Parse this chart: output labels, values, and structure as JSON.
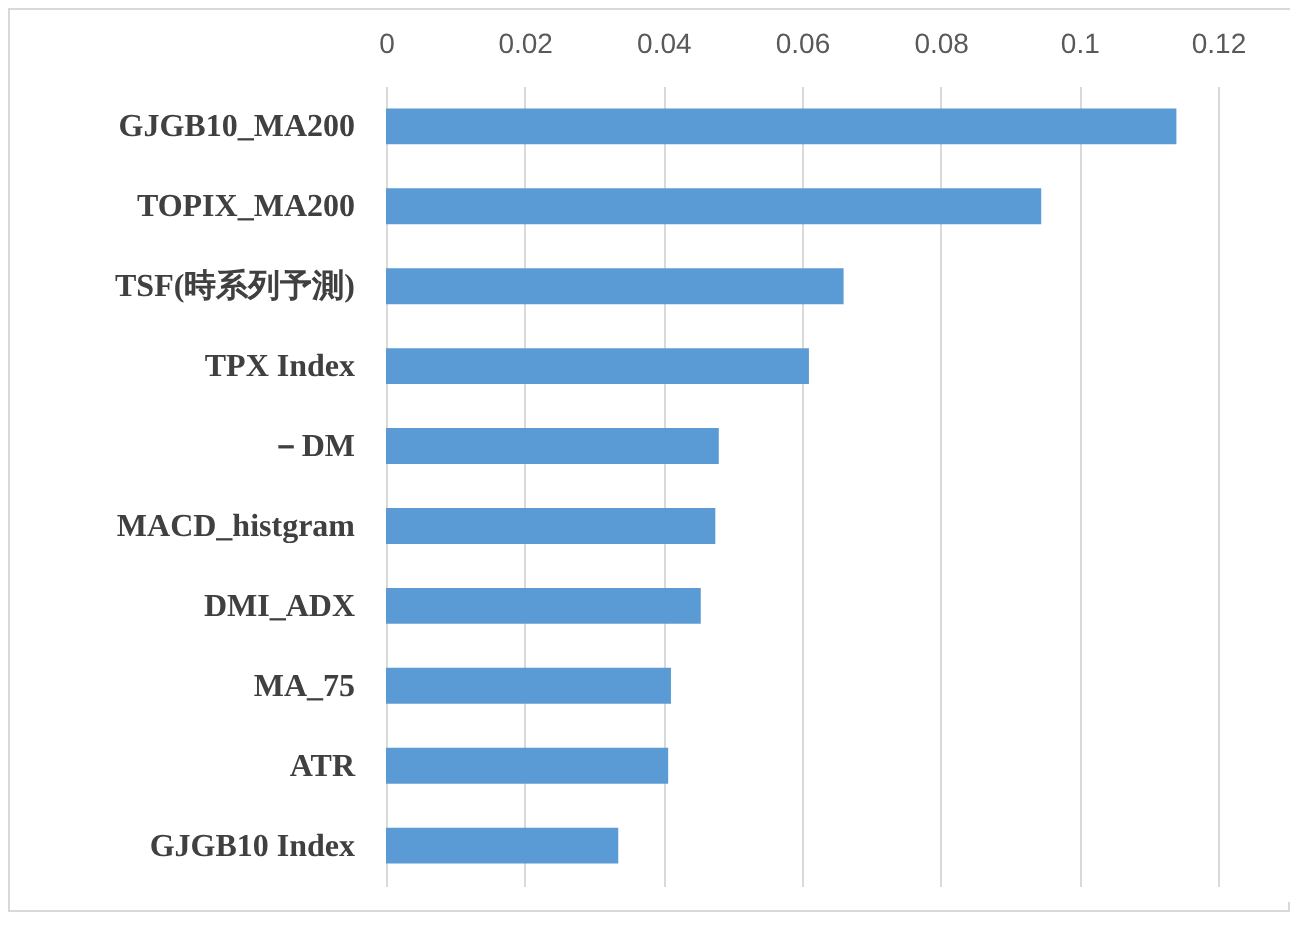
{
  "chart_data": {
    "type": "bar",
    "orientation": "horizontal",
    "categories": [
      "GJGB10_MA200",
      "TOPIX_MA200",
      "TSF(時系列予測)",
      "TPX Index",
      "－DM",
      "MACD_histgram",
      "DMI_ADX",
      "MA_75",
      "ATR",
      "GJGB10 Index"
    ],
    "values": [
      0.114,
      0.0945,
      0.066,
      0.061,
      0.048,
      0.0475,
      0.0454,
      0.0411,
      0.0407,
      0.0335
    ],
    "color": "#5b9bd5",
    "xlim": [
      0,
      0.12
    ],
    "xticks": [
      0,
      0.02,
      0.04,
      0.06,
      0.08,
      0.1,
      0.12
    ],
    "grid": "x"
  }
}
